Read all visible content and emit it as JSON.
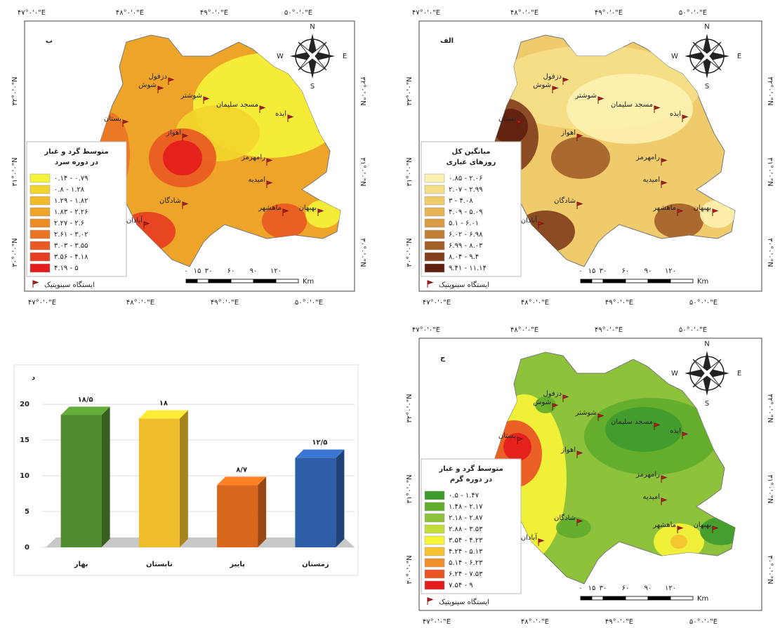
{
  "maps": [
    {
      "title": "ب",
      "legend": {
        "title": [
          "متوسط گرد و غبار",
          "در دوره سرد"
        ],
        "items": [
          {
            "label": "۰.۱۴ - ۰.۷۹",
            "color": "#f5f23a"
          },
          {
            "label": "۰.۸ - ۱.۲۸",
            "color": "#f2d52e"
          },
          {
            "label": "۱.۲۹ - ۱.۸۲",
            "color": "#f0bb2a"
          },
          {
            "label": "۱.۸۳ - ۲.۲۶",
            "color": "#eea428"
          },
          {
            "label": "۲.۲۷ - ۲.۶",
            "color": "#ec8c26"
          },
          {
            "label": "۲.۶۱ - ۳.۰۲",
            "color": "#ea7424"
          },
          {
            "label": "۳.۰۳ - ۳.۵۵",
            "color": "#e85a22"
          },
          {
            "label": "۳.۵۶ - ۴.۱۸",
            "color": "#e63e20"
          },
          {
            "label": "۴.۱۹ - ۵",
            "color": "#e41c1c"
          }
        ]
      }
    },
    {
      "title": "الف",
      "legend": {
        "title": [
          "میانگین کل",
          "روزهای غباری"
        ],
        "items": [
          {
            "label": "۰.۸۵ - ۲.۰۶",
            "color": "#fbf1b0"
          },
          {
            "label": "۲.۰۷ - ۲.۹۹",
            "color": "#f6df8a"
          },
          {
            "label": "۳ - ۴.۰۸",
            "color": "#efcb6c"
          },
          {
            "label": "۴.۰۹ - ۵.۰۹",
            "color": "#e5b556"
          },
          {
            "label": "۵.۱ - ۶.۰۱",
            "color": "#d89d45"
          },
          {
            "label": "۶.۰۲ - ۶.۹۸",
            "color": "#c27f36"
          },
          {
            "label": "۶.۹۹ - ۸.۰۳",
            "color": "#a3612a"
          },
          {
            "label": "۸.۰۴ - ۹.۴",
            "color": "#82401d"
          },
          {
            "label": "۹.۴۱ - ۱۱.۱۴",
            "color": "#5e1f10"
          }
        ]
      }
    },
    {
      "title": "ج",
      "legend": {
        "title": [
          "متوسط گرد و غبار",
          "در دوره گرم"
        ],
        "items": [
          {
            "label": "۰.۵ - ۱.۴۷",
            "color": "#3f9b2c"
          },
          {
            "label": "۱.۴۸ - ۲.۱۷",
            "color": "#62ac2c"
          },
          {
            "label": "۲.۱۸ - ۲.۸۷",
            "color": "#8dc23a"
          },
          {
            "label": "۲.۸۸ - ۳.۵۳",
            "color": "#c4dc3a"
          },
          {
            "label": "۳.۵۴ - ۴.۲۳",
            "color": "#f8f43a"
          },
          {
            "label": "۴.۲۴ - ۵.۱۳",
            "color": "#f4c232"
          },
          {
            "label": "۵.۱۴ - ۶.۲۳",
            "color": "#f0902a"
          },
          {
            "label": "۶.۲۴ - ۷.۵۳",
            "color": "#ea5424"
          },
          {
            "label": "۷.۵۴ - ۹",
            "color": "#e41c1c"
          }
        ]
      }
    }
  ],
  "map_common": {
    "cities": [
      "دزفول",
      "شوش",
      "شوشتر",
      "مسجد سلیمان",
      "ایذه",
      "بستان",
      "اهواز",
      "رامهرمز",
      "امیدیه",
      "شادگان",
      "ماهشهر",
      "بهبهان",
      "آبادان"
    ],
    "longitudes": [
      "۴۷°۰'۰\"E",
      "۴۸°۰'۰\"E",
      "۴۹°۰'۰\"E",
      "۵۰°۰'۰\"E"
    ],
    "latitudes": [
      "۳۰°۰'۰\"N",
      "۳۱°۰'۰\"N",
      "۳۲°۰'۰\"N"
    ],
    "compass": [
      "N",
      "E",
      "S",
      "W"
    ],
    "scale": {
      "ticks": [
        "۰",
        "۱۵",
        "۳۰",
        "۶۰",
        "۹۰",
        "۱۲۰"
      ],
      "unit": "Km"
    },
    "station": "ایستگاه سینوپتیک"
  },
  "chart_data": {
    "type": "bar",
    "title": "د",
    "categories": [
      "بهار",
      "تابستان",
      "پاییز",
      "زمستان"
    ],
    "values": [
      18.5,
      18,
      8.7,
      12.5
    ],
    "value_labels": [
      "۱۸/۵",
      "۱۸",
      "۸/۷",
      "۱۲/۵"
    ],
    "colors": [
      "#4f8a2f",
      "#efbd2c",
      "#d8661c",
      "#2f5ea8"
    ],
    "ylim": [
      0,
      21
    ],
    "yticks": [
      0,
      5,
      10,
      15,
      20
    ],
    "grid": true
  }
}
